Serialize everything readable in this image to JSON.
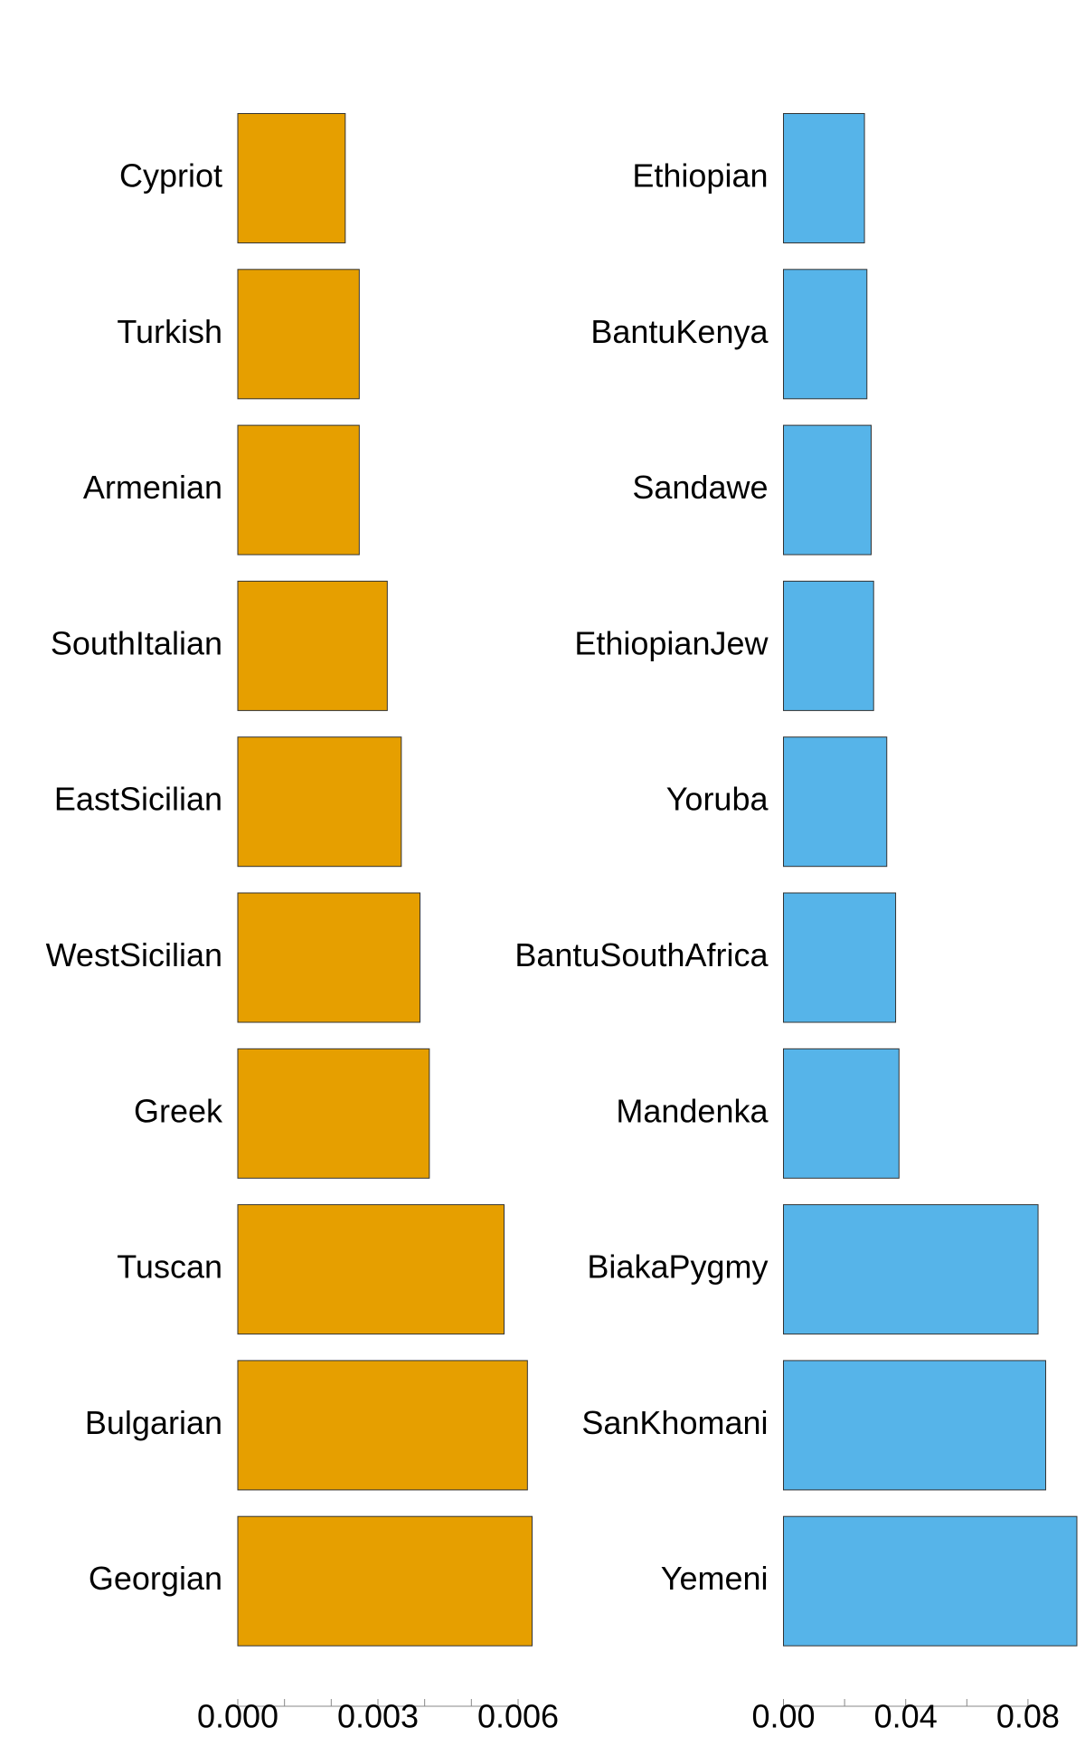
{
  "chart_data": [
    {
      "type": "bar",
      "orientation": "horizontal",
      "color": "#E69F00",
      "categories": [
        "Cypriot",
        "Turkish",
        "Armenian",
        "SouthItalian",
        "EastSicilian",
        "WestSicilian",
        "Greek",
        "Tuscan",
        "Bulgarian",
        "Georgian"
      ],
      "values": [
        0.0023,
        0.0026,
        0.0026,
        0.0032,
        0.0035,
        0.0039,
        0.0041,
        0.0057,
        0.0062,
        0.0063
      ],
      "xlim": [
        0,
        0.0063
      ],
      "xticks": [
        {
          "value": 0,
          "label": "0.000"
        },
        0.003,
        0.006
      ],
      "minor_xticks": [
        0.001,
        0.002,
        0.004,
        0.005
      ]
    },
    {
      "type": "bar",
      "orientation": "horizontal",
      "color": "#56B4E9",
      "categories": [
        "Ethiopian",
        "BantuKenya",
        "Sandawe",
        "EthiopianJew",
        "Yoruba",
        "BantuSouthAfrica",
        "Mandenka",
        "BiakaPygmy",
        "SanKhomani",
        "Yemeni"
      ],
      "values": [
        0.0265,
        0.0273,
        0.0287,
        0.0295,
        0.0338,
        0.0367,
        0.0378,
        0.0833,
        0.0858,
        0.096
      ],
      "xlim": [
        0,
        0.096
      ],
      "xticks": [
        {
          "value": 0,
          "label": "0.00"
        },
        0.04,
        0.08
      ],
      "minor_xticks": [
        0.02,
        0.06
      ]
    }
  ]
}
